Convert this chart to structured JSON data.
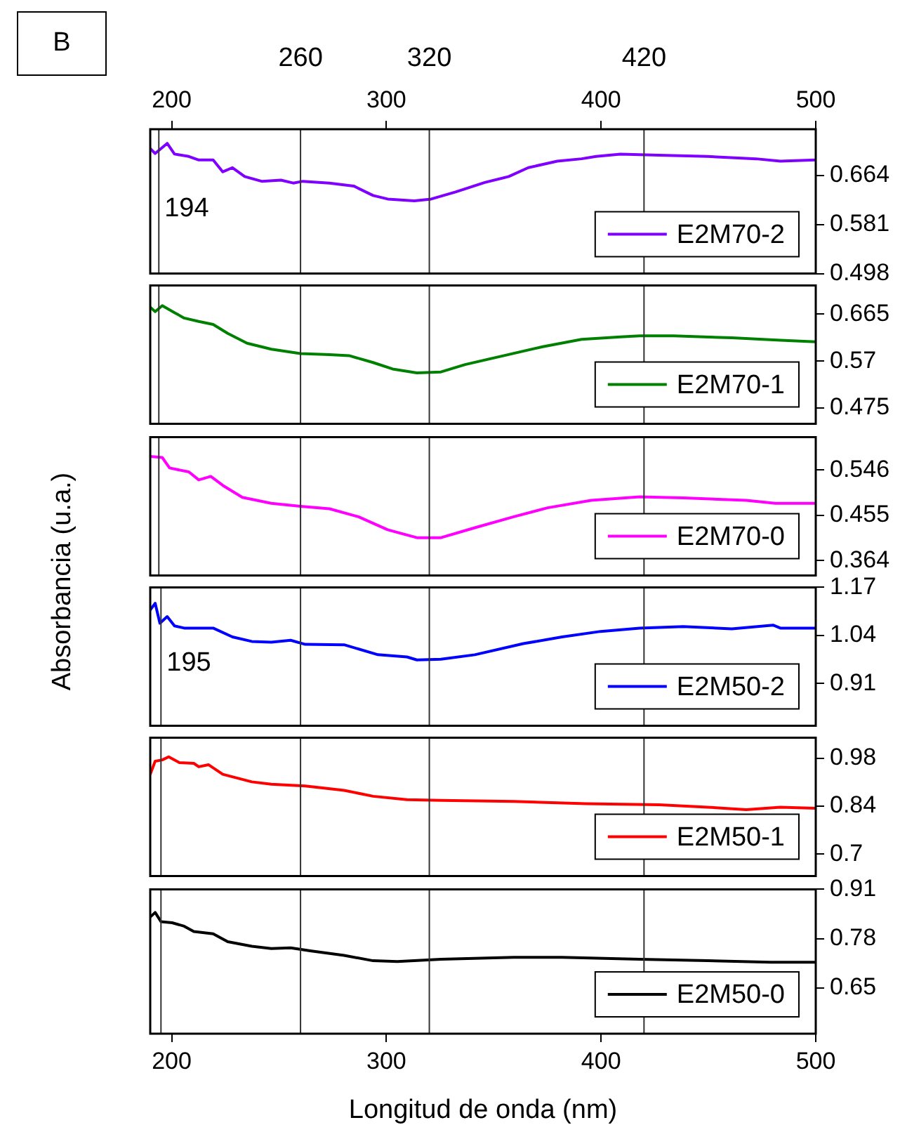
{
  "chart_data": [
    {
      "type": "line",
      "annotations": [
        "B"
      ],
      "xlim": [
        190,
        500
      ],
      "x2lim": [
        190,
        500
      ],
      "x2ticks": [
        200,
        300,
        400,
        500
      ],
      "ylim": [
        0.498,
        0.742
      ],
      "yticks": [
        0.498,
        0.581,
        0.664
      ],
      "grid": false,
      "legend": "bottom right",
      "line_style": "solid",
      "tick_labels": "y",
      "ref_lines": [
        {
          "axis": "x",
          "value": 194,
          "label": "194"
        },
        {
          "axis": "x",
          "value": 260,
          "label": "260"
        },
        {
          "axis": "x",
          "value": 320,
          "label": "320"
        },
        {
          "axis": "x",
          "value": 420,
          "label": "420"
        }
      ],
      "x": [
        190,
        192.3,
        197.9,
        201.3,
        208,
        212.6,
        219.3,
        223.8,
        228.3,
        234,
        241.9,
        250.9,
        256.6,
        261.1,
        273.5,
        284.8,
        293.8,
        300.6,
        313,
        320.9,
        332.2,
        345.8,
        357,
        366.1,
        379.6,
        390.9,
        397.7,
        409,
        427,
        449.6,
        472.2,
        483.5,
        500
      ],
      "series": [
        {
          "name": "E2M70-2",
          "color": "#8000ff",
          "values": [
            0.709,
            0.701,
            0.718,
            0.7,
            0.696,
            0.69,
            0.69,
            0.67,
            0.677,
            0.662,
            0.654,
            0.656,
            0.651,
            0.654,
            0.651,
            0.646,
            0.63,
            0.624,
            0.621,
            0.624,
            0.636,
            0.652,
            0.662,
            0.677,
            0.688,
            0.692,
            0.696,
            0.7,
            0.698,
            0.696,
            0.692,
            0.688,
            0.69
          ]
        }
      ]
    },
    {
      "type": "line",
      "xlim": [
        190,
        500
      ],
      "ylim": [
        0.443,
        0.723
      ],
      "yticks": [
        0.475,
        0.57,
        0.665
      ],
      "grid": false,
      "legend": "bottom right",
      "line_style": "solid",
      "tick_labels": "y",
      "ref_lines": [
        {
          "axis": "x",
          "value": 194
        },
        {
          "axis": "x",
          "value": 260
        },
        {
          "axis": "x",
          "value": 320
        },
        {
          "axis": "x",
          "value": 420
        }
      ],
      "x": [
        190,
        192.3,
        195.6,
        201.3,
        205.8,
        212.6,
        219.3,
        226.1,
        235.1,
        246.4,
        260,
        273.5,
        282.6,
        293.8,
        302.9,
        314.2,
        325.4,
        336.7,
        354.8,
        372.8,
        390.9,
        409,
        418,
        433.8,
        460.9,
        483.5,
        500
      ],
      "series": [
        {
          "name": "E2M70-1",
          "color": "#008000",
          "values": [
            0.679,
            0.67,
            0.682,
            0.668,
            0.657,
            0.65,
            0.644,
            0.626,
            0.606,
            0.594,
            0.585,
            0.583,
            0.581,
            0.567,
            0.554,
            0.546,
            0.548,
            0.563,
            0.581,
            0.599,
            0.614,
            0.619,
            0.621,
            0.621,
            0.617,
            0.612,
            0.609
          ]
        }
      ]
    },
    {
      "type": "line",
      "xlim": [
        190,
        500
      ],
      "ylim": [
        0.334,
        0.612
      ],
      "yticks": [
        0.364,
        0.455,
        0.546
      ],
      "grid": false,
      "legend": "bottom right",
      "line_style": "solid",
      "tick_labels": "y",
      "ref_lines": [
        {
          "axis": "x",
          "value": 194
        },
        {
          "axis": "x",
          "value": 260
        },
        {
          "axis": "x",
          "value": 320
        },
        {
          "axis": "x",
          "value": 420
        }
      ],
      "x": [
        190,
        195.6,
        199,
        208,
        212.6,
        218.2,
        223.8,
        232.9,
        246.4,
        260,
        273.5,
        287,
        300.6,
        314.2,
        325.4,
        341.2,
        359.3,
        375.1,
        395.4,
        418,
        438.3,
        467.6,
        481.2,
        500
      ],
      "series": [
        {
          "name": "E2M70-0",
          "color": "#ff00ff",
          "values": [
            0.573,
            0.571,
            0.55,
            0.542,
            0.526,
            0.533,
            0.515,
            0.491,
            0.479,
            0.473,
            0.468,
            0.452,
            0.426,
            0.41,
            0.41,
            0.43,
            0.452,
            0.47,
            0.485,
            0.492,
            0.49,
            0.485,
            0.479,
            0.479
          ]
        }
      ]
    },
    {
      "type": "line",
      "ylabel": "Absorbancia (u.a.)",
      "xlim": [
        190,
        500
      ],
      "ylim": [
        0.796,
        1.17
      ],
      "yticks": [
        0.91,
        1.04,
        1.17
      ],
      "grid": false,
      "legend": "bottom right",
      "line_style": "solid",
      "tick_labels": "y",
      "ref_lines": [
        {
          "axis": "x",
          "value": 195,
          "label": "195"
        },
        {
          "axis": "x",
          "value": 260
        },
        {
          "axis": "x",
          "value": 320
        },
        {
          "axis": "x",
          "value": 420
        }
      ],
      "x": [
        190,
        192.3,
        194.5,
        197.9,
        201.3,
        205.8,
        219.3,
        228.3,
        237.3,
        246.4,
        255.4,
        262.2,
        280.3,
        296.1,
        309.6,
        314.2,
        325.4,
        341.2,
        363.8,
        381.8,
        399.8,
        418,
        438.3,
        460.9,
        480.1,
        483.5,
        500
      ],
      "series": [
        {
          "name": "E2M50-2",
          "color": "#0000ff",
          "values": [
            1.109,
            1.127,
            1.073,
            1.091,
            1.066,
            1.06,
            1.06,
            1.036,
            1.024,
            1.022,
            1.027,
            1.016,
            1.015,
            0.988,
            0.982,
            0.974,
            0.976,
            0.988,
            1.018,
            1.036,
            1.051,
            1.06,
            1.064,
            1.058,
            1.068,
            1.06,
            1.06
          ]
        }
      ]
    },
    {
      "type": "line",
      "xlim": [
        190,
        500
      ],
      "ylim": [
        0.636,
        1.04
      ],
      "yticks": [
        0.7,
        0.84,
        0.98
      ],
      "grid": false,
      "legend": "bottom right",
      "line_style": "solid",
      "tick_labels": "y",
      "ref_lines": [
        {
          "axis": "x",
          "value": 195
        },
        {
          "axis": "x",
          "value": 260
        },
        {
          "axis": "x",
          "value": 320
        },
        {
          "axis": "x",
          "value": 420
        }
      ],
      "x": [
        190,
        192.3,
        195.6,
        198.6,
        203.6,
        210.3,
        212.6,
        217.1,
        223.8,
        237.3,
        246.4,
        262.2,
        280.3,
        293.8,
        309.6,
        325.4,
        359.3,
        393.1,
        427,
        449.6,
        467.6,
        483.5,
        500
      ],
      "series": [
        {
          "name": "E2M50-1",
          "color": "#ff0000",
          "values": [
            0.933,
            0.971,
            0.975,
            0.984,
            0.967,
            0.965,
            0.955,
            0.961,
            0.933,
            0.911,
            0.904,
            0.899,
            0.886,
            0.869,
            0.859,
            0.857,
            0.854,
            0.847,
            0.844,
            0.837,
            0.83,
            0.837,
            0.834
          ]
        }
      ]
    },
    {
      "type": "line",
      "xlabel": "Longitud de onda (nm)",
      "xlim": [
        190,
        500
      ],
      "xticks": [
        200,
        300,
        400,
        500
      ],
      "ylim": [
        0.53,
        0.91
      ],
      "yticks": [
        0.65,
        0.78,
        0.91
      ],
      "grid": false,
      "legend": "bottom right",
      "line_style": "solid",
      "ref_lines": [
        {
          "axis": "x",
          "value": 195
        },
        {
          "axis": "x",
          "value": 260
        },
        {
          "axis": "x",
          "value": 320
        },
        {
          "axis": "x",
          "value": 420
        }
      ],
      "x": [
        190,
        192.3,
        195,
        200.2,
        205.8,
        210.3,
        219.3,
        226.1,
        237.3,
        246.4,
        255.4,
        264.5,
        280.3,
        293.8,
        305.1,
        325.4,
        359.3,
        381.8,
        418,
        449.6,
        479,
        500
      ],
      "series": [
        {
          "name": "E2M50-0",
          "color": "#000000",
          "values": [
            0.837,
            0.849,
            0.825,
            0.822,
            0.813,
            0.799,
            0.793,
            0.772,
            0.76,
            0.754,
            0.756,
            0.748,
            0.736,
            0.722,
            0.72,
            0.726,
            0.731,
            0.731,
            0.726,
            0.722,
            0.718,
            0.718
          ]
        }
      ]
    }
  ]
}
